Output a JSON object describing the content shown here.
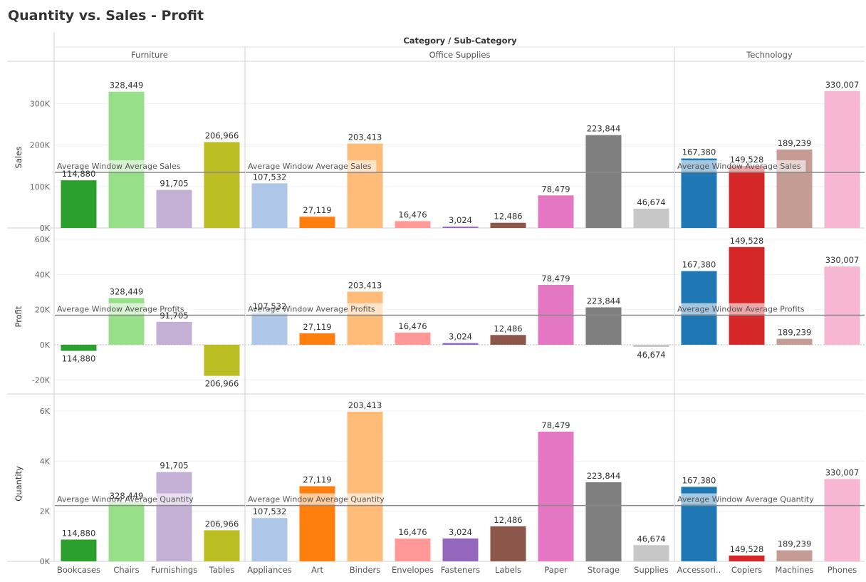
{
  "title": "Quantity vs. Sales - Profit",
  "chart_data": {
    "type": "bar",
    "column_header": "Category / Sub-Category",
    "categories": [
      {
        "name": "Furniture",
        "subcategories": [
          "Bookcases",
          "Chairs",
          "Furnishings",
          "Tables"
        ]
      },
      {
        "name": "Office Supplies",
        "subcategories": [
          "Appliances",
          "Art",
          "Binders",
          "Envelopes",
          "Fasteners",
          "Labels",
          "Paper",
          "Storage",
          "Supplies"
        ]
      },
      {
        "name": "Technology",
        "subcategories": [
          "Accessori..",
          "Copiers",
          "Machines",
          "Phones"
        ]
      }
    ],
    "colors": [
      "#2ca02c",
      "#98df8a",
      "#c5b0d5",
      "#bcbd22",
      "#aec7e8",
      "#ff7f0e",
      "#ffbb78",
      "#ff9896",
      "#9467bd",
      "#8c564b",
      "#e377c2",
      "#7f7f7f",
      "#c7c7c7",
      "#1f77b4",
      "#d62728",
      "#c49c94",
      "#f7b6d2"
    ],
    "labels": [
      "114,880",
      "328,449",
      "91,705",
      "206,966",
      "107,532",
      "27,119",
      "203,413",
      "16,476",
      "3,024",
      "12,486",
      "78,479",
      "223,844",
      "46,674",
      "167,380",
      "149,528",
      "189,239",
      "330,007"
    ],
    "panes": [
      {
        "ylabel": "Sales",
        "ylim": [
          0,
          340000
        ],
        "ticks": [
          0,
          100000,
          200000,
          300000
        ],
        "tick_labels": [
          "0K",
          "100K",
          "200K",
          "300K"
        ],
        "values": [
          114880,
          328449,
          91705,
          206966,
          107532,
          27119,
          203413,
          16476,
          3024,
          12486,
          78479,
          223844,
          46674,
          167380,
          149528,
          189239,
          330007
        ],
        "reference_label": "Average Window Average Sales",
        "reference_values": [
          134000,
          134000,
          134000
        ]
      },
      {
        "ylabel": "Profit",
        "ylim": [
          -28000,
          60000
        ],
        "ticks": [
          -20000,
          0,
          20000,
          40000,
          60000
        ],
        "tick_labels": [
          "-20K",
          "0K",
          "20K",
          "40K",
          "60K"
        ],
        "values": [
          -3473,
          26590,
          13059,
          -17725,
          18138,
          6528,
          30222,
          6964,
          950,
          5546,
          34054,
          21279,
          -1189,
          41937,
          55618,
          3385,
          44516
        ],
        "reference_label": "Average Window Average Profits",
        "reference_values": [
          16800,
          16800,
          16800
        ]
      },
      {
        "ylabel": "Quantity",
        "ylim": [
          0,
          6200
        ],
        "ticks": [
          0,
          2000,
          4000,
          6000
        ],
        "tick_labels": [
          "0K",
          "2K",
          "4K",
          "6K"
        ],
        "values": [
          868,
          2356,
          3563,
          1241,
          1729,
          3000,
          5974,
          906,
          914,
          1400,
          5178,
          3158,
          647,
          2976,
          234,
          440,
          3289
        ],
        "reference_label": "Average Window Average Quantity",
        "reference_values": [
          2230,
          2230,
          2230
        ]
      }
    ]
  }
}
